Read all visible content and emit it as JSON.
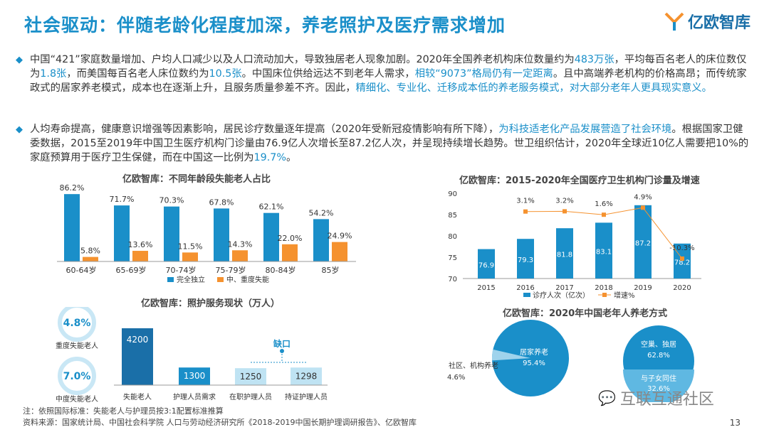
{
  "title": "社会驱动：伴随老龄化程度加深，养老照护及医疗需求增加",
  "logo": {
    "text": "亿欧智库"
  },
  "para1": {
    "t1": "中国“421”家庭数量增加、户均人口减少以及人口流动加大，导致独居老人现象加剧。2020年全国养老机构床位数量约为",
    "h1": "483万张",
    "t2": "，平均每百名老人的床位数仅为",
    "h2": "1.8张",
    "t3": "，而美国每百名老人床位数约为",
    "h3": "10.5张",
    "t4": "。中国床位供给远达不到老年人需求，",
    "h4": "相较“9073”格局仍有一定距离",
    "t5": "。且中高端养老机构的价格高昂；而传统家政式的居家养老模式，成本也在逐渐上升，且服务质量参差不齐。因此，",
    "h5": "精细化、专业化、迁移成本低的养老服务模式，对大部分老年人更具现实意义。"
  },
  "para2": {
    "t1": "人均寿命提高，健康意识增强等因素影响，居民诊疗数量逐年提高（2020年受新冠疫情影响有所下降），",
    "h1": "为科技适老化产品发展营造了社会环境",
    "t2": "。根据国家卫健委数据，2015至2019年中国卫生医疗机构门诊量由76.9亿人次增长至87.2亿人次，并呈现持续增长趋势。世卫组织估计，2020年全球近10亿人需要把10%的家庭预算用于医疗卫生保健，而在中国这一比例为",
    "h2": "19.7%",
    "t3": "。"
  },
  "chart_data": [
    {
      "type": "bar",
      "title": "亿欧智库：不同年龄段失能老人占比",
      "categories": [
        "60-64岁",
        "65-69岁",
        "70-74岁",
        "75-79岁",
        "80-84岁",
        "85岁"
      ],
      "series": [
        {
          "name": "完全独立",
          "values": [
            86.2,
            71.7,
            70.3,
            67.8,
            62.1,
            54.2
          ],
          "labels": [
            "86.2%",
            "71.7%",
            "70.3%",
            "67.8%",
            "62.1%",
            "54.2%"
          ]
        },
        {
          "name": "中、重度失能",
          "values": [
            5.8,
            13.6,
            11.5,
            14.3,
            22.0,
            24.9
          ],
          "labels": [
            "5.8%",
            "13.6%",
            "11.5%",
            "14.3%",
            "22.0%",
            "24.9%"
          ]
        }
      ],
      "ylim": [
        0,
        100
      ]
    },
    {
      "type": "bar",
      "title": "亿欧智库：2015-2020年全国医疗卫生机构门诊量及增速",
      "categories": [
        "2015",
        "2016",
        "2017",
        "2018",
        "2019",
        "2020"
      ],
      "series": [
        {
          "name": "诊疗人次（亿次）",
          "values": [
            76.9,
            79.3,
            81.8,
            83.1,
            87.2,
            78.2
          ],
          "labels": [
            "76.9",
            "79.3",
            "81.8",
            "83.1",
            "87.2",
            "78.2"
          ]
        },
        {
          "name": "增速%",
          "values": [
            null,
            3.1,
            3.2,
            1.6,
            4.9,
            -10.3
          ],
          "labels": [
            "",
            "3.1%",
            "3.2%",
            "1.6%",
            "4.9%",
            "-10.3%"
          ]
        }
      ],
      "ylim": [
        70,
        90
      ],
      "yticks": [
        "70",
        "75",
        "80",
        "85",
        "90"
      ]
    },
    {
      "type": "bar",
      "title": "亿欧智库：照护服务现状（万人）",
      "circles": [
        {
          "value": "4.8%",
          "label": "重度失能老人"
        },
        {
          "value": "7.0%",
          "label": "中度失能老人"
        }
      ],
      "categories": [
        "失能老人",
        "护理人员需求",
        "在职护理人员",
        "持证护理人员"
      ],
      "values": [
        4200,
        1300,
        1250,
        1298
      ],
      "labels": [
        "4200",
        "1300",
        "1250",
        "1298"
      ],
      "gap_label": "缺口"
    },
    {
      "type": "pie",
      "title": "亿欧智库：2020年中国老年人养老方式",
      "slices": [
        {
          "label": "居家养老",
          "value": 95.4,
          "text": "95.4%"
        },
        {
          "label": "社区、机构养老",
          "value": 4.6,
          "text": "4.6%"
        }
      ],
      "sub_slices": [
        {
          "label": "空巢、独居",
          "value": 62.8,
          "text": "62.8%"
        },
        {
          "label": "与子女同住",
          "value": 32.6,
          "text": "32.6%"
        }
      ]
    }
  ],
  "watermark": "互联互通社区",
  "footnote1": "注：依照国际标准：失能老人与护理员按3:1配置标准推算",
  "footnote2": "资料来源：国家统计局、中国社会科学院 人口与劳动经济研究所《2018-2019中国长期护理调研报告》、亿欧智库",
  "page_number": "13",
  "colors": {
    "accent": "#1a8fc9",
    "orange": "#f5922f",
    "dark_blue": "#1a6fa8"
  }
}
